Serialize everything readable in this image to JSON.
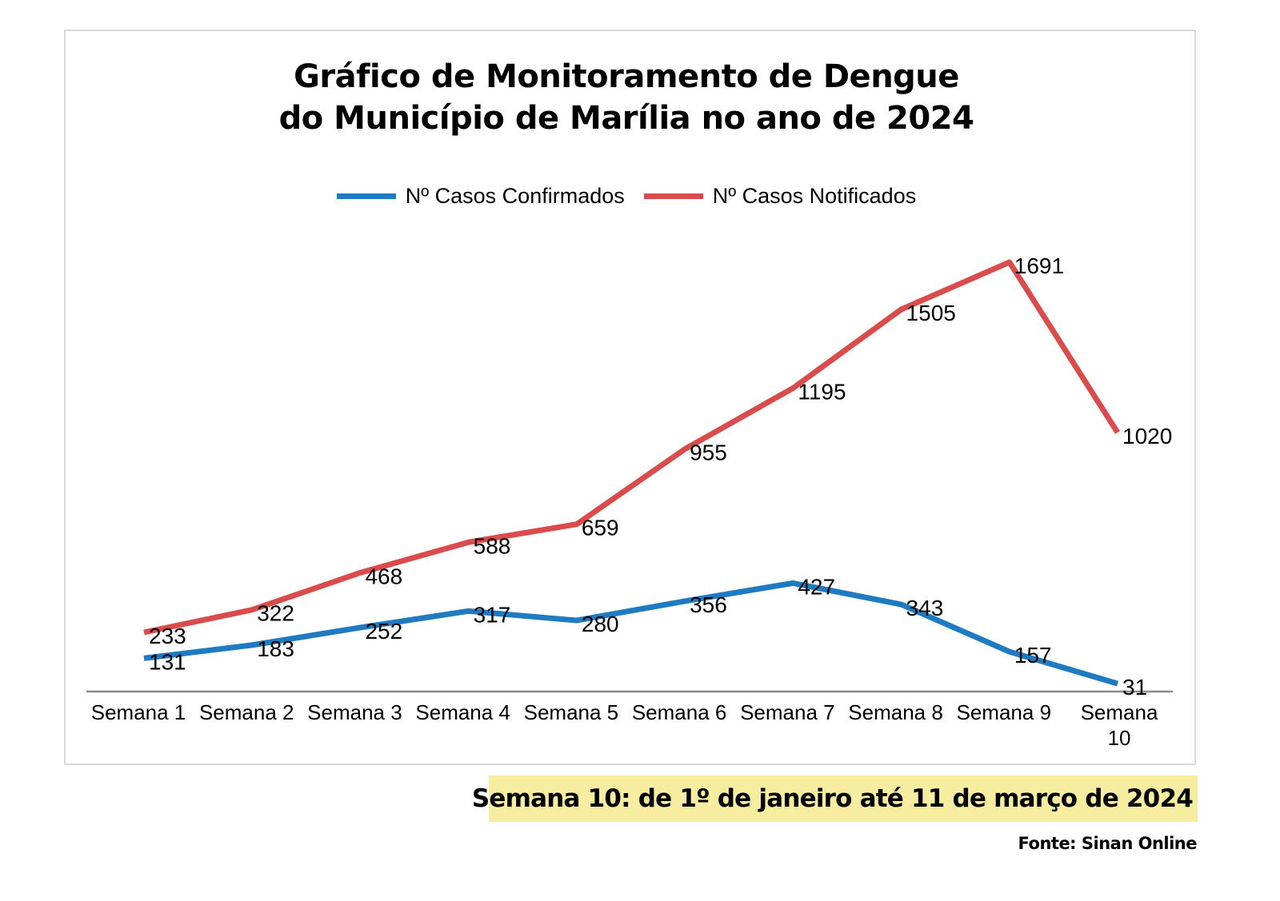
{
  "chart_data": {
    "type": "line",
    "title": "Gráfico de Monitoramento de Dengue do Município de Marília no ano de 2024",
    "title_lines": [
      "Gráfico de Monitoramento de Dengue",
      "do Município de Marília no ano de 2024"
    ],
    "xlabel": "",
    "ylabel": "",
    "categories": [
      "Semana 1",
      "Semana 2",
      "Semana 3",
      "Semana 4",
      "Semana 5",
      "Semana 6",
      "Semana 7",
      "Semana 8",
      "Semana 9",
      "Semana 10"
    ],
    "series": [
      {
        "name": "Nº Casos Confirmados",
        "color": "#1f7bc1",
        "values": [
          131,
          183,
          252,
          317,
          280,
          356,
          427,
          343,
          157,
          31
        ]
      },
      {
        "name": "Nº Casos Notificados",
        "color": "#d94c4b",
        "values": [
          233,
          322,
          468,
          588,
          659,
          955,
          1195,
          1505,
          1691,
          1020
        ]
      }
    ],
    "ylim": [
      0,
      1800
    ],
    "grid": false,
    "y_axis_visible": false,
    "data_labels": true,
    "legend_position": "top"
  },
  "footer": {
    "period_note": "Semana 10: de 1º de janeiro até 11 de março de 2024",
    "source": "Fonte: Sinan Online",
    "highlight_color": "#f7eda0"
  }
}
